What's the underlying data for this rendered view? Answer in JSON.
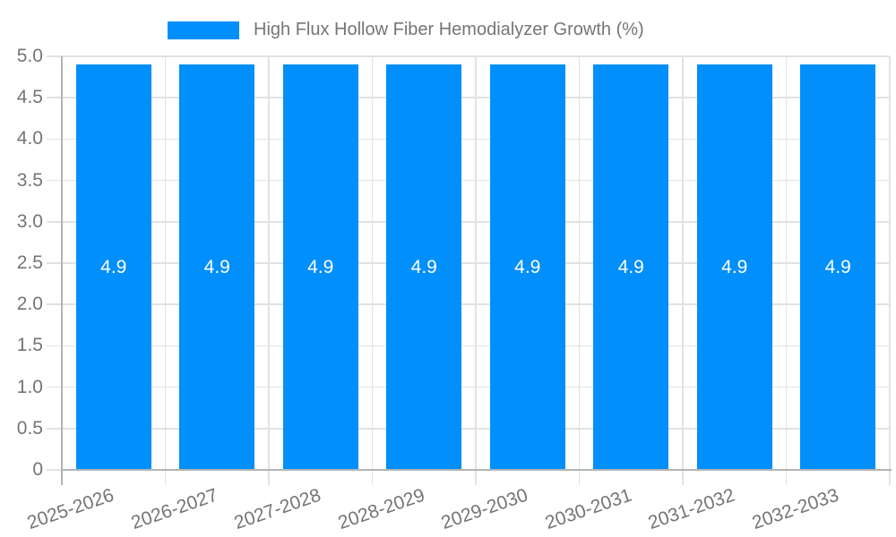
{
  "chart_data": {
    "type": "bar",
    "title": "High Flux Hollow Fiber Hemodialyzer Growth (%)",
    "legend": {
      "label": "High Flux Hollow Fiber Hemodialyzer Growth (%)",
      "position": "top"
    },
    "categories": [
      "2025-2026",
      "2026-2027",
      "2027-2028",
      "2028-2029",
      "2029-2030",
      "2030-2031",
      "2031-2032",
      "2032-2033"
    ],
    "values": [
      4.9,
      4.9,
      4.9,
      4.9,
      4.9,
      4.9,
      4.9,
      4.9
    ],
    "bar_labels": [
      "4.9",
      "4.9",
      "4.9",
      "4.9",
      "4.9",
      "4.9",
      "4.9",
      "4.9"
    ],
    "xlabel": "",
    "ylabel": "",
    "ylim": [
      0,
      5
    ],
    "yticks": [
      0,
      0.5,
      1,
      1.5,
      2,
      2.5,
      3,
      3.5,
      4,
      4.5,
      5
    ],
    "ytick_labels": [
      "0",
      "0.5",
      "1.0",
      "1.5",
      "2.0",
      "2.5",
      "3.0",
      "3.5",
      "4.0",
      "4.5",
      "5.0"
    ],
    "grid": true,
    "colors": {
      "bar": "#008FFB",
      "grid": "#e2e2e2",
      "axis": "#b3b3b3",
      "tick_label": "#757575",
      "bar_label": "#ffffff",
      "legend_label": "#757575"
    }
  }
}
